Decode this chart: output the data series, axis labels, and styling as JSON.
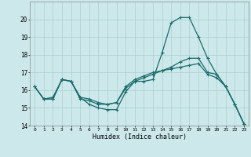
{
  "xlabel": "Humidex (Indice chaleur)",
  "x": [
    0,
    1,
    2,
    3,
    4,
    5,
    6,
    7,
    8,
    9,
    10,
    11,
    12,
    13,
    14,
    15,
    16,
    17,
    18,
    19,
    20,
    21,
    22,
    23
  ],
  "line1": [
    16.2,
    15.5,
    15.5,
    16.6,
    16.5,
    15.6,
    15.2,
    15.0,
    14.9,
    14.9,
    15.9,
    16.5,
    16.5,
    16.6,
    18.1,
    19.8,
    20.1,
    20.1,
    19.0,
    17.8,
    16.9,
    16.2,
    15.2,
    14.1
  ],
  "line2": [
    16.2,
    15.5,
    15.5,
    16.6,
    16.5,
    15.5,
    15.4,
    15.2,
    15.2,
    15.3,
    16.1,
    16.5,
    16.7,
    16.9,
    17.1,
    17.3,
    17.6,
    17.8,
    17.8,
    17.0,
    16.9,
    16.2,
    15.2,
    14.1
  ],
  "line3": [
    16.2,
    15.5,
    15.6,
    16.6,
    16.5,
    15.6,
    15.5,
    15.3,
    15.2,
    15.3,
    16.2,
    16.6,
    16.8,
    17.0,
    17.1,
    17.2,
    17.3,
    17.4,
    17.5,
    16.9,
    16.7,
    16.2,
    15.2,
    14.1
  ],
  "ylim": [
    14,
    21
  ],
  "yticks": [
    14,
    15,
    16,
    17,
    18,
    19,
    20
  ],
  "bg_color": "#cce8ea",
  "grid_color": "#aacfd2",
  "line_color": "#1a6b6b",
  "linewidth": 0.9,
  "markersize": 3.0
}
